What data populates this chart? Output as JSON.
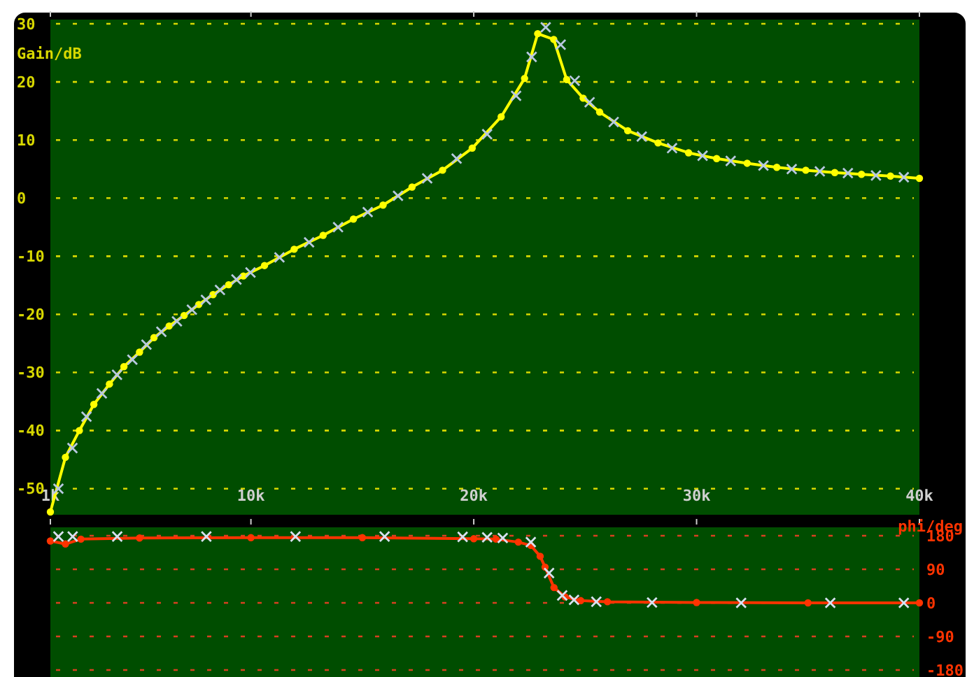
{
  "chart_data": [
    {
      "type": "line",
      "ylabel": "Gain/dB",
      "xlim": [
        1000,
        40000
      ],
      "ylim": [
        -54,
        30
      ],
      "xticks": [
        {
          "value": 1000,
          "label": "1k"
        },
        {
          "value": 10000,
          "label": "10k"
        },
        {
          "value": 20000,
          "label": "20k"
        },
        {
          "value": 30000,
          "label": "30k"
        },
        {
          "value": 40000,
          "label": "40k"
        }
      ],
      "yticks": [
        30,
        20,
        10,
        0,
        -10,
        -20,
        -30,
        -40,
        -50
      ],
      "grid": "y",
      "series": [
        {
          "color": "#ffff00",
          "marker": "circle",
          "x": [
            1000,
            1675,
            2300,
            2950,
            3650,
            4300,
            5000,
            5650,
            6330,
            7000,
            7660,
            8300,
            9000,
            9660,
            10610,
            11940,
            13240,
            14600,
            15930,
            17230,
            18600,
            19930,
            21230,
            22280,
            22870,
            23590,
            24170,
            24910,
            25650,
            26910,
            28270,
            29640,
            30900,
            32270,
            33600,
            34900,
            36200,
            37400,
            38700,
            40000
          ],
          "values": [
            -54,
            -44.6,
            -40,
            -35.5,
            -32,
            -29,
            -26.5,
            -24,
            -22,
            -20.2,
            -18.3,
            -16.6,
            -14.9,
            -13.4,
            -11.6,
            -8.8,
            -6.4,
            -3.6,
            -1.2,
            1.9,
            4.8,
            8.6,
            14,
            20.6,
            28.3,
            27.3,
            20.4,
            17.2,
            14.8,
            11.6,
            9.5,
            7.8,
            6.8,
            6,
            5.3,
            4.8,
            4.4,
            4.1,
            3.8,
            3.4
          ]
        },
        {
          "type": "scatter",
          "color": "#b8c8e0",
          "marker": "cross",
          "x": [
            1360,
            1990,
            2620,
            3310,
            3990,
            4680,
            5310,
            5980,
            6680,
            7350,
            7980,
            8610,
            9350,
            9980,
            11280,
            12610,
            13910,
            15240,
            16600,
            17910,
            19230,
            20600,
            21900,
            22600,
            23230,
            23900,
            24530,
            25200,
            26280,
            27540,
            28900,
            30270,
            31530,
            33000,
            34270,
            35530,
            36790,
            38050,
            39300
          ],
          "values": [
            -50,
            -43,
            -37.6,
            -33.6,
            -30.4,
            -27.8,
            -25.2,
            -23,
            -21.2,
            -19.2,
            -17.5,
            -15.8,
            -14,
            -12.8,
            -10.2,
            -7.6,
            -5,
            -2.4,
            0.4,
            3.4,
            6.8,
            11,
            17.6,
            24.3,
            29.4,
            26.4,
            20.2,
            16.5,
            13.1,
            10.6,
            8.6,
            7.3,
            6.4,
            5.6,
            5,
            4.6,
            4.3,
            3.9,
            3.6
          ]
        }
      ]
    },
    {
      "type": "line",
      "ylabel": "phi/deg",
      "xlim": [
        1000,
        40000
      ],
      "ylim": [
        -200,
        200
      ],
      "xticks": [
        {
          "value": 1000,
          "label": null
        },
        {
          "value": 10000,
          "label": null
        },
        {
          "value": 20000,
          "label": null
        },
        {
          "value": 30000,
          "label": null
        },
        {
          "value": 40000,
          "label": null
        }
      ],
      "yticks": [
        180,
        90,
        0,
        -90,
        -180
      ],
      "grid": "y",
      "tick_labels": "y",
      "series": [
        {
          "color": "#ff3300",
          "marker": "circle",
          "x": [
            1000,
            1675,
            2370,
            5000,
            10000,
            15000,
            20000,
            21000,
            22000,
            22560,
            22980,
            23200,
            23600,
            24100,
            24800,
            26000,
            30000,
            35000,
            40000
          ],
          "values": [
            166,
            158,
            171,
            174,
            175,
            175,
            172,
            171,
            163,
            154,
            125,
            96,
            41,
            16,
            6,
            3,
            1,
            0,
            0
          ]
        },
        {
          "type": "scatter",
          "color": "#d8e0f0",
          "marker": "cross",
          "x": [
            1360,
            2000,
            4000,
            8000,
            12000,
            16000,
            19500,
            20600,
            21300,
            22560,
            23380,
            23970,
            24500,
            25500,
            28000,
            32000,
            36000,
            39300
          ],
          "values": [
            178,
            178,
            178,
            178,
            178,
            178,
            177,
            176,
            174,
            163,
            80,
            20,
            8,
            3,
            1,
            0,
            0,
            0
          ]
        }
      ]
    }
  ]
}
